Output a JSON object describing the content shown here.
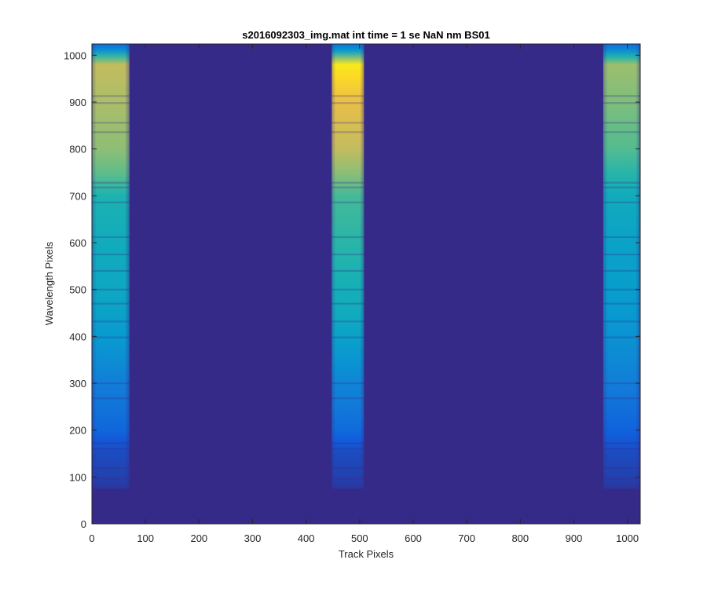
{
  "chart_data": {
    "type": "heatmap",
    "title": "s2016092303_img.mat int time = 1 se  NaN nm BS01",
    "xlabel": "Track Pixels",
    "ylabel": "Wavelength Pixels",
    "xlim": [
      0,
      1024
    ],
    "ylim": [
      0,
      1024
    ],
    "xticks": [
      0,
      100,
      200,
      300,
      400,
      500,
      600,
      700,
      800,
      900,
      1000
    ],
    "yticks": [
      0,
      100,
      200,
      300,
      400,
      500,
      600,
      700,
      800,
      900,
      1000
    ],
    "grid": false,
    "colormap": "parula",
    "background_color": "#352a87",
    "bands": [
      {
        "x_range": [
          0,
          70
        ],
        "y_range": [
          75,
          1024
        ],
        "profile": [
          [
            75,
            0.04
          ],
          [
            100,
            0.07
          ],
          [
            150,
            0.1
          ],
          [
            180,
            0.14
          ],
          [
            200,
            0.2
          ],
          [
            250,
            0.26
          ],
          [
            300,
            0.3
          ],
          [
            350,
            0.38
          ],
          [
            400,
            0.44
          ],
          [
            450,
            0.48
          ],
          [
            500,
            0.5
          ],
          [
            600,
            0.52
          ],
          [
            700,
            0.56
          ],
          [
            750,
            0.66
          ],
          [
            800,
            0.72
          ],
          [
            900,
            0.76
          ],
          [
            980,
            0.8
          ],
          [
            995,
            0.62
          ],
          [
            1010,
            0.4
          ],
          [
            1024,
            0.22
          ]
        ]
      },
      {
        "x_range": [
          448,
          508
        ],
        "y_range": [
          75,
          1024
        ],
        "profile": [
          [
            75,
            0.04
          ],
          [
            100,
            0.07
          ],
          [
            150,
            0.1
          ],
          [
            180,
            0.16
          ],
          [
            200,
            0.22
          ],
          [
            250,
            0.28
          ],
          [
            300,
            0.34
          ],
          [
            350,
            0.42
          ],
          [
            400,
            0.48
          ],
          [
            450,
            0.52
          ],
          [
            500,
            0.54
          ],
          [
            600,
            0.58
          ],
          [
            700,
            0.62
          ],
          [
            750,
            0.72
          ],
          [
            800,
            0.8
          ],
          [
            900,
            0.88
          ],
          [
            950,
            0.96
          ],
          [
            980,
            0.98
          ],
          [
            995,
            0.7
          ],
          [
            1010,
            0.45
          ],
          [
            1024,
            0.25
          ]
        ]
      },
      {
        "x_range": [
          955,
          1024
        ],
        "y_range": [
          75,
          1024
        ],
        "profile": [
          [
            75,
            0.04
          ],
          [
            100,
            0.07
          ],
          [
            150,
            0.1
          ],
          [
            180,
            0.14
          ],
          [
            200,
            0.18
          ],
          [
            250,
            0.24
          ],
          [
            300,
            0.3
          ],
          [
            350,
            0.36
          ],
          [
            400,
            0.4
          ],
          [
            450,
            0.44
          ],
          [
            500,
            0.46
          ],
          [
            600,
            0.48
          ],
          [
            700,
            0.52
          ],
          [
            750,
            0.58
          ],
          [
            800,
            0.64
          ],
          [
            900,
            0.7
          ],
          [
            980,
            0.74
          ],
          [
            995,
            0.58
          ],
          [
            1010,
            0.38
          ],
          [
            1024,
            0.22
          ]
        ]
      }
    ],
    "absorption_lines_y": [
      97,
      120,
      160,
      172,
      268,
      300,
      398,
      432,
      470,
      500,
      540,
      575,
      612,
      686,
      718,
      728,
      836,
      856,
      898,
      913
    ]
  }
}
